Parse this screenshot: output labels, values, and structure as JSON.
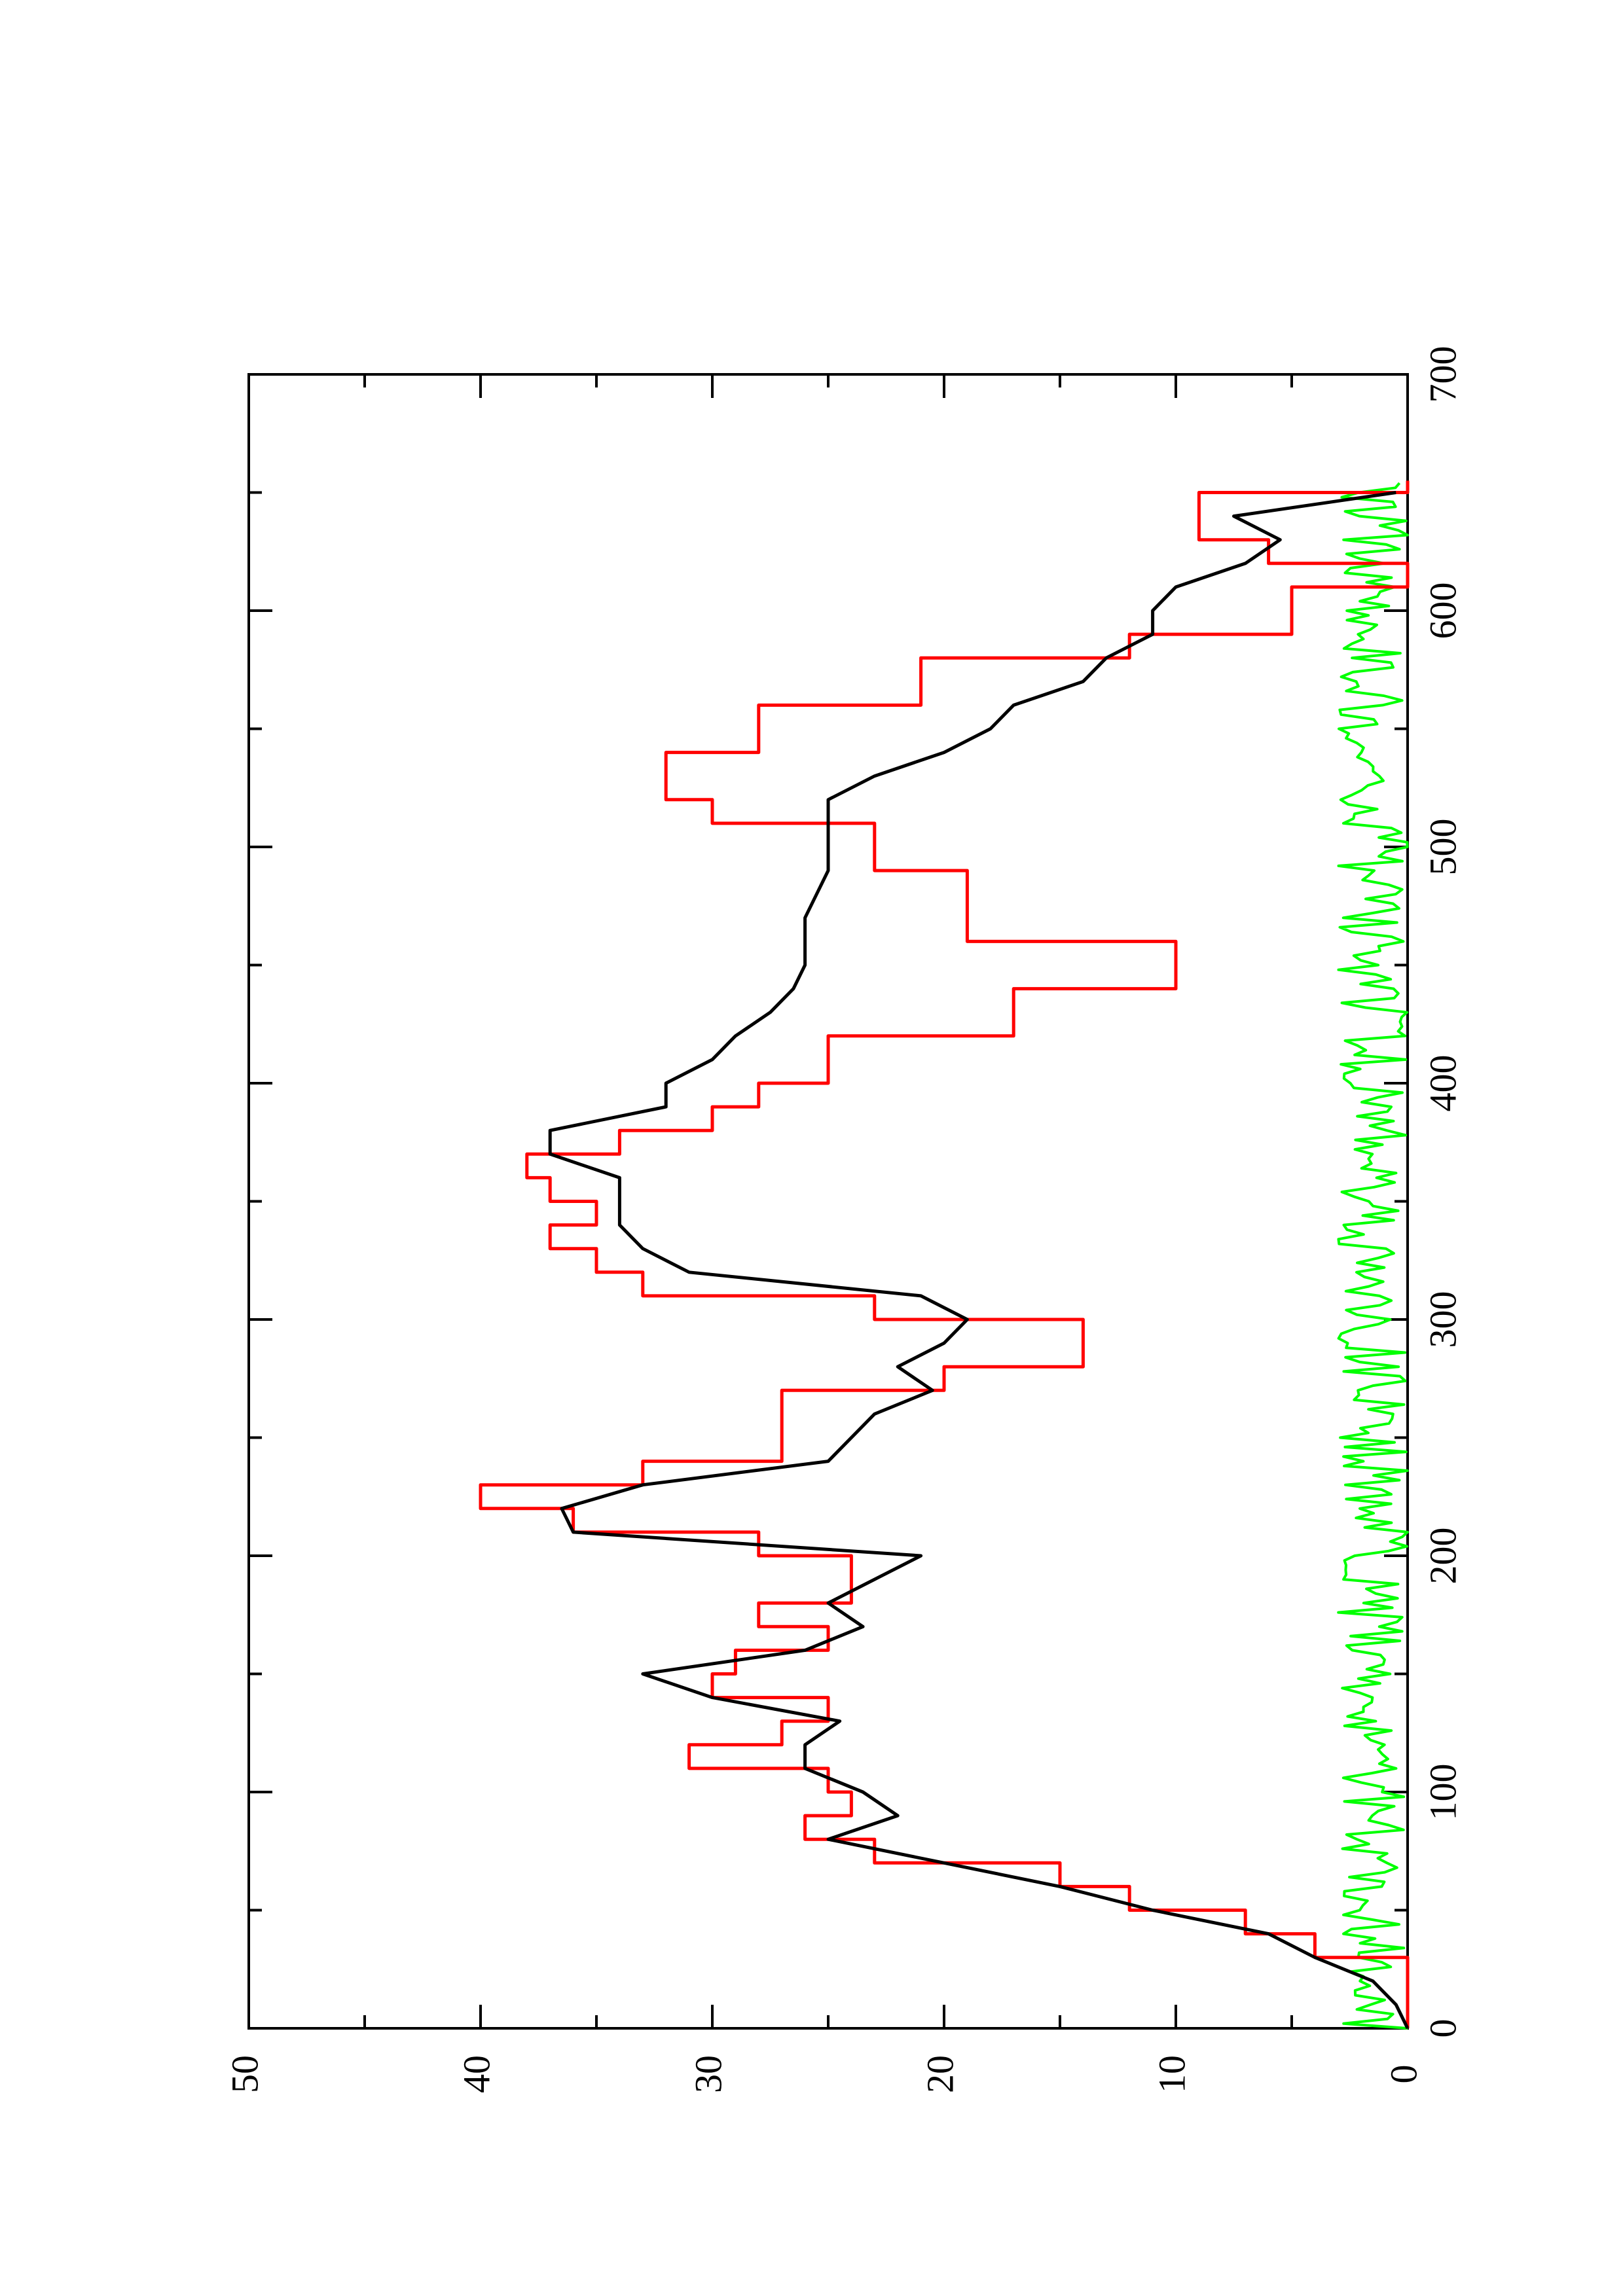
{
  "chart_data": {
    "type": "line",
    "orientation": "rotated-90-ccw",
    "title": "",
    "xlabel": "",
    "ylabel": "",
    "xlim": [
      0,
      700
    ],
    "ylim": [
      0,
      50
    ],
    "x_ticks": [
      "0",
      "100",
      "200",
      "300",
      "400",
      "500",
      "600",
      "700"
    ],
    "y_ticks": [
      "0",
      "10",
      "20",
      "30",
      "40",
      "50"
    ],
    "grid": false,
    "legend": "none",
    "series": [
      {
        "color": "#ff0000",
        "step": true,
        "points": [
          [
            0,
            0
          ],
          [
            30,
            0
          ],
          [
            30,
            4
          ],
          [
            40,
            4
          ],
          [
            40,
            7
          ],
          [
            50,
            7
          ],
          [
            50,
            12
          ],
          [
            60,
            12
          ],
          [
            60,
            15
          ],
          [
            70,
            15
          ],
          [
            70,
            23
          ],
          [
            80,
            23
          ],
          [
            80,
            26
          ],
          [
            90,
            26
          ],
          [
            90,
            24
          ],
          [
            100,
            24
          ],
          [
            100,
            25
          ],
          [
            110,
            25
          ],
          [
            110,
            31
          ],
          [
            120,
            31
          ],
          [
            120,
            27
          ],
          [
            130,
            27
          ],
          [
            130,
            25
          ],
          [
            140,
            25
          ],
          [
            140,
            30
          ],
          [
            150,
            30
          ],
          [
            150,
            29
          ],
          [
            160,
            29
          ],
          [
            160,
            25
          ],
          [
            170,
            25
          ],
          [
            170,
            28
          ],
          [
            180,
            28
          ],
          [
            180,
            24
          ],
          [
            200,
            24
          ],
          [
            200,
            28
          ],
          [
            210,
            28
          ],
          [
            210,
            36
          ],
          [
            220,
            36
          ],
          [
            220,
            40
          ],
          [
            230,
            40
          ],
          [
            230,
            33
          ],
          [
            240,
            33
          ],
          [
            240,
            27
          ],
          [
            270,
            27
          ],
          [
            270,
            20
          ],
          [
            280,
            20
          ],
          [
            280,
            14
          ],
          [
            300,
            14
          ],
          [
            300,
            23
          ],
          [
            310,
            23
          ],
          [
            310,
            33
          ],
          [
            320,
            33
          ],
          [
            320,
            35
          ],
          [
            330,
            35
          ],
          [
            330,
            37
          ],
          [
            340,
            37
          ],
          [
            340,
            35
          ],
          [
            350,
            35
          ],
          [
            350,
            37
          ],
          [
            360,
            37
          ],
          [
            360,
            38
          ],
          [
            370,
            38
          ],
          [
            370,
            34
          ],
          [
            380,
            34
          ],
          [
            380,
            30
          ],
          [
            390,
            30
          ],
          [
            390,
            28
          ],
          [
            400,
            28
          ],
          [
            400,
            25
          ],
          [
            420,
            25
          ],
          [
            420,
            17
          ],
          [
            440,
            17
          ],
          [
            440,
            10
          ],
          [
            460,
            10
          ],
          [
            460,
            19
          ],
          [
            490,
            19
          ],
          [
            490,
            23
          ],
          [
            510,
            23
          ],
          [
            510,
            30
          ],
          [
            520,
            30
          ],
          [
            520,
            32
          ],
          [
            540,
            32
          ],
          [
            540,
            28
          ],
          [
            560,
            28
          ],
          [
            560,
            21
          ],
          [
            580,
            21
          ],
          [
            580,
            12
          ],
          [
            590,
            12
          ],
          [
            590,
            5
          ],
          [
            610,
            5
          ],
          [
            610,
            0
          ],
          [
            620,
            0
          ],
          [
            620,
            6
          ],
          [
            630,
            6
          ],
          [
            630,
            9
          ],
          [
            650,
            9
          ],
          [
            650,
            0
          ],
          [
            655,
            0
          ]
        ]
      },
      {
        "color": "#000000",
        "step": false,
        "points": [
          [
            0,
            0
          ],
          [
            10,
            0.5
          ],
          [
            20,
            1.5
          ],
          [
            30,
            4
          ],
          [
            40,
            6
          ],
          [
            50,
            11
          ],
          [
            60,
            15
          ],
          [
            70,
            20
          ],
          [
            80,
            25
          ],
          [
            90,
            22
          ],
          [
            100,
            23.5
          ],
          [
            110,
            26
          ],
          [
            120,
            26
          ],
          [
            130,
            24.5
          ],
          [
            140,
            30
          ],
          [
            150,
            33
          ],
          [
            160,
            26
          ],
          [
            170,
            23.5
          ],
          [
            180,
            25
          ],
          [
            190,
            23
          ],
          [
            200,
            21
          ],
          [
            210,
            36
          ],
          [
            220,
            36.5
          ],
          [
            230,
            33
          ],
          [
            240,
            25
          ],
          [
            260,
            23
          ],
          [
            270,
            20.5
          ],
          [
            280,
            22
          ],
          [
            290,
            20
          ],
          [
            300,
            19
          ],
          [
            310,
            21
          ],
          [
            320,
            31
          ],
          [
            330,
            33
          ],
          [
            340,
            34
          ],
          [
            350,
            34
          ],
          [
            360,
            34
          ],
          [
            370,
            37
          ],
          [
            380,
            37
          ],
          [
            390,
            32
          ],
          [
            400,
            32
          ],
          [
            410,
            30
          ],
          [
            420,
            29
          ],
          [
            430,
            27.5
          ],
          [
            440,
            26.5
          ],
          [
            450,
            26
          ],
          [
            460,
            26
          ],
          [
            470,
            26
          ],
          [
            480,
            25.5
          ],
          [
            490,
            25
          ],
          [
            500,
            25
          ],
          [
            510,
            25
          ],
          [
            520,
            25
          ],
          [
            530,
            23
          ],
          [
            540,
            20
          ],
          [
            550,
            18
          ],
          [
            560,
            17
          ],
          [
            570,
            14
          ],
          [
            580,
            13
          ],
          [
            590,
            11
          ],
          [
            600,
            11
          ],
          [
            610,
            10
          ],
          [
            620,
            7
          ],
          [
            630,
            5.5
          ],
          [
            640,
            7.5
          ],
          [
            650,
            0.5
          ]
        ]
      },
      {
        "color": "#00ff00",
        "step": false,
        "noise": true,
        "x_range": [
          0,
          655
        ],
        "y_range": [
          0,
          3
        ]
      }
    ]
  }
}
